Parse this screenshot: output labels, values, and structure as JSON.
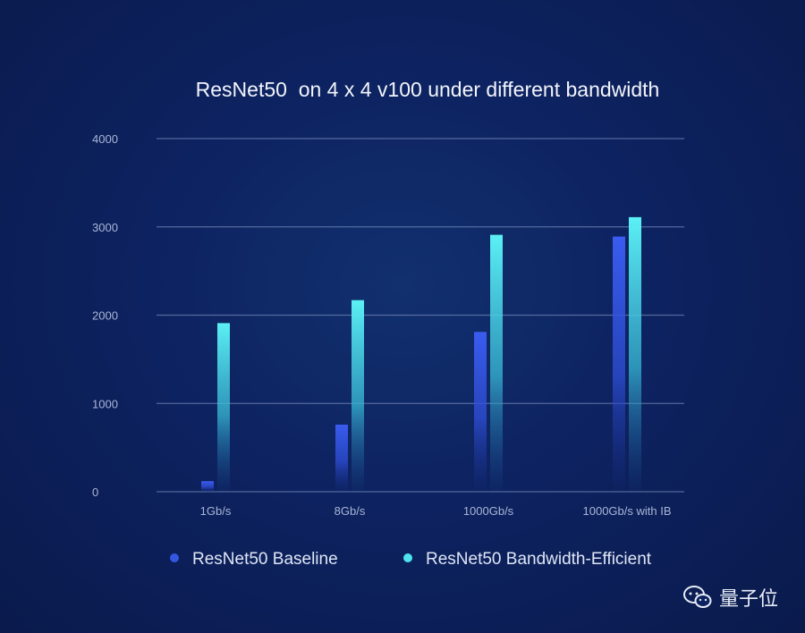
{
  "chart_data": {
    "type": "bar",
    "title": "ResNet50  on 4 x 4 v100 under different bandwidth",
    "categories": [
      "1Gb/s",
      "8Gb/s",
      "1000Gb/s",
      "1000Gb/s with IB"
    ],
    "series": [
      {
        "name": "ResNet50 Baseline",
        "values": [
          120,
          760,
          1810,
          2890
        ],
        "color": "#3557e0"
      },
      {
        "name": "ResNet50 Bandwidth-Efficient",
        "values": [
          1910,
          2170,
          2910,
          3110
        ],
        "color": "#4fe3f0"
      }
    ],
    "yticks": [
      0,
      1000,
      2000,
      3000,
      4000
    ],
    "ylim": [
      0,
      4000
    ],
    "grid": true,
    "legend_position": "bottom"
  },
  "watermark": {
    "text": "量子位"
  }
}
